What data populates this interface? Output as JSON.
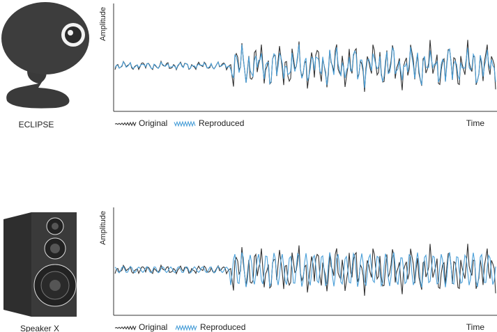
{
  "panels": [
    {
      "device": "ECLIPSE",
      "y_label": "Amplitude",
      "x_label": "Time",
      "legend": [
        "Original",
        "Reproduced"
      ]
    },
    {
      "device": "Speaker X",
      "y_label": "Amplitude",
      "x_label": "Time",
      "legend": [
        "Original",
        "Reproduced"
      ]
    }
  ]
}
